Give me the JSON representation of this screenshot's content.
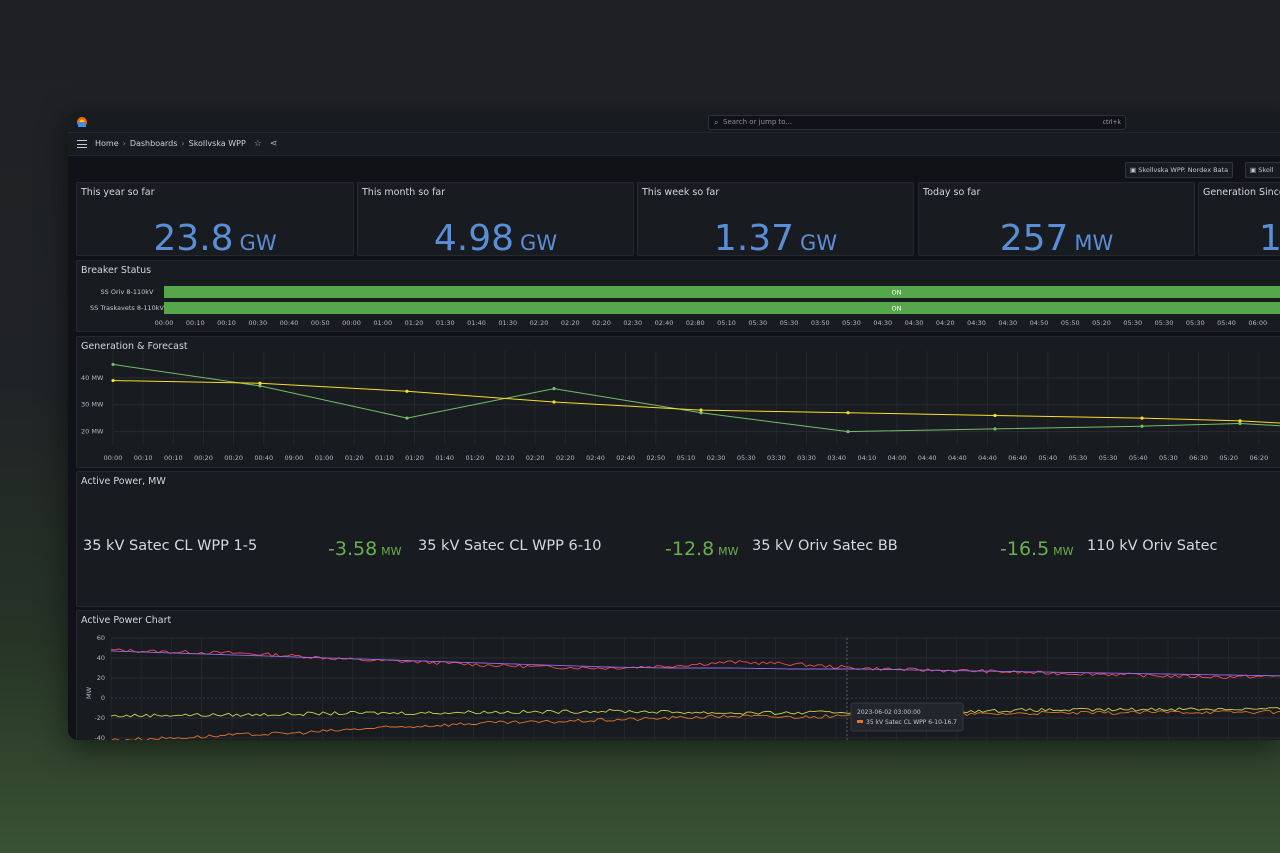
{
  "topbar": {
    "search_placeholder": "Search or jump to...",
    "search_shortcut": "ctrl+k"
  },
  "navbar": {
    "breadcrumb": [
      "Home",
      "Dashboards",
      "Skollvska WPP"
    ]
  },
  "variables": [
    "Skollvska WPP. Nordex Bata",
    "Skoll"
  ],
  "stats": [
    {
      "title": "This year so far",
      "value": "23.8",
      "unit": "GW"
    },
    {
      "title": "This month so far",
      "value": "4.98",
      "unit": "GW"
    },
    {
      "title": "This week so far",
      "value": "1.37",
      "unit": "GW"
    },
    {
      "title": "Today so far",
      "value": "257",
      "unit": "MW"
    },
    {
      "title": "Generation Since",
      "value": "1",
      "unit": ""
    }
  ],
  "breaker": {
    "title": "Breaker Status",
    "rows": [
      {
        "name": "SS Oriv 8-110kV",
        "state": "ON"
      },
      {
        "name": "SS Traskavets 8-110kV",
        "state": "ON"
      }
    ],
    "time_ticks": [
      "00:00",
      "00:10",
      "00:10",
      "00:30",
      "00:40",
      "00:50",
      "00:00",
      "01:00",
      "01:20",
      "01:30",
      "01:40",
      "01:30",
      "02:20",
      "02:20",
      "02:20",
      "02:30",
      "02:40",
      "02:80",
      "05:10",
      "05:30",
      "05:30",
      "03:50",
      "05:30",
      "04:30",
      "04:30",
      "04:20",
      "04:30",
      "04:30",
      "04:50",
      "05:50",
      "05:20",
      "05:30",
      "05:30",
      "05:30",
      "05:40",
      "06:00",
      "06:00"
    ],
    "on_color": "#56a64b"
  },
  "forecast": {
    "title": "Generation & Forecast",
    "y_ticks": [
      "40 MW",
      "30 MW",
      "20 MW"
    ],
    "x_ticks": [
      "00:00",
      "00:10",
      "00:10",
      "00:20",
      "00:20",
      "00:40",
      "09:00",
      "01:00",
      "01:20",
      "01:10",
      "01:20",
      "01:40",
      "01:20",
      "02:10",
      "02:20",
      "02:20",
      "02:40",
      "02:40",
      "02:50",
      "05:10",
      "02:30",
      "05:30",
      "03:30",
      "03:30",
      "03:40",
      "04:10",
      "04:00",
      "04:40",
      "04:40",
      "04:40",
      "06:40",
      "05:40",
      "05:30",
      "05:30",
      "05:40",
      "05:30",
      "06:30",
      "05:20",
      "06:20",
      "06:20"
    ]
  },
  "active_power": {
    "title": "Active Power, MW",
    "items": [
      {
        "label": "35 kV Satec CL WPP 1-5",
        "value": "-3.58",
        "unit": "MW"
      },
      {
        "label": "35 kV Satec CL WPP 6-10",
        "value": "-12.8",
        "unit": "MW"
      },
      {
        "label": "35 kV Oriv Satec BB",
        "value": "-16.5",
        "unit": "MW"
      },
      {
        "label": "110 kV Oriv Satec",
        "value": "",
        "unit": ""
      }
    ]
  },
  "power_chart": {
    "title": "Active Power Chart",
    "y_axis_label": "MW",
    "y_ticks": [
      "60",
      "40",
      "20",
      "0",
      "-20",
      "-40"
    ],
    "tooltip_time": "2023-06-02 03:00:00",
    "tooltip_series": "35 kV Satec CL WPP 6-10",
    "tooltip_value": "-16.7"
  },
  "chart_data": [
    {
      "type": "line",
      "title": "Generation & Forecast",
      "ylabel": "MW",
      "ylim": [
        15,
        50
      ],
      "series": [
        {
          "name": "",
          "color": "#73bf69",
          "x_index": [
            0,
            3,
            6,
            9,
            12,
            15,
            18,
            21,
            23,
            24
          ],
          "values": [
            45,
            37,
            25,
            36,
            27,
            20,
            21,
            22,
            23,
            22
          ]
        },
        {
          "name": "",
          "color": "#fade2a",
          "x_index": [
            0,
            3,
            6,
            9,
            12,
            15,
            18,
            21,
            23,
            24
          ],
          "values": [
            39,
            38,
            35,
            31,
            28,
            27,
            26,
            25,
            24,
            23
          ]
        }
      ]
    },
    {
      "type": "line",
      "title": "Active Power Chart",
      "ylabel": "MW",
      "ylim": [
        -45,
        60
      ],
      "series": [
        {
          "name": "",
          "color": "#f2495c",
          "values": [
            48,
            46,
            45,
            42,
            38,
            36,
            33,
            31,
            30,
            32,
            36,
            34,
            30,
            28,
            27,
            25,
            24,
            22,
            21,
            22
          ]
        },
        {
          "name": "",
          "color": "#8f6de8",
          "values": [
            47,
            45,
            43,
            41,
            39,
            37,
            35,
            33,
            31,
            30,
            30,
            29,
            29,
            28,
            27,
            26,
            25,
            24,
            23,
            22
          ]
        },
        {
          "name": "",
          "color": "#c8d64f",
          "values": [
            -18,
            -17,
            -17,
            -16,
            -15,
            -15,
            -14,
            -14,
            -13,
            -14,
            -15,
            -15,
            -14,
            -13,
            -13,
            -12,
            -12,
            -11,
            -11,
            -11
          ]
        },
        {
          "name": "",
          "color": "#e0752d",
          "values": [
            -42,
            -40,
            -37,
            -35,
            -31,
            -28,
            -25,
            -24,
            -22,
            -20,
            -18,
            -19,
            -18,
            -17,
            -16,
            -15,
            -15,
            -14,
            -14,
            -14
          ]
        }
      ]
    }
  ]
}
